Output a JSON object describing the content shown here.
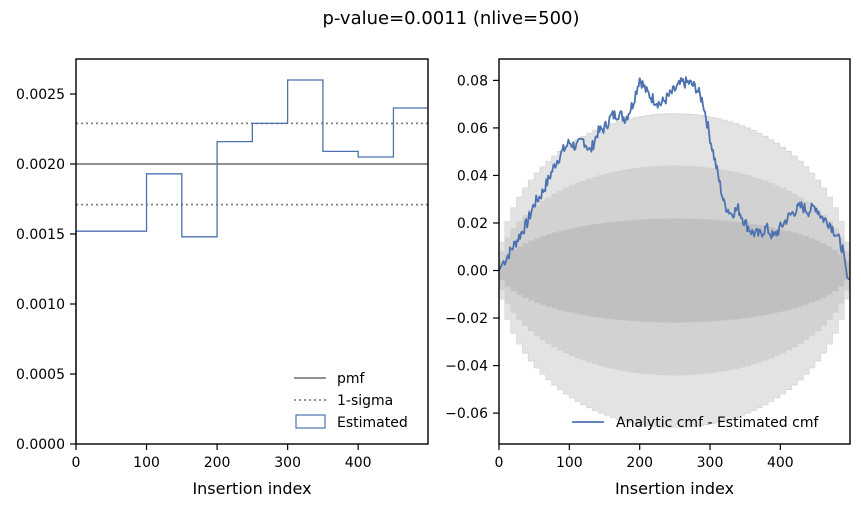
{
  "figure": {
    "title": "p-value=0.0011 (nlive=500)"
  },
  "colors": {
    "estimated": "#4c72b0",
    "pmf": "#808080",
    "band_outer": "#e3e3e3",
    "band_mid": "#d2d2d2",
    "band_inner": "#c0c0c0"
  },
  "chart_data": [
    {
      "type": "line",
      "name": "left",
      "xlabel": "Insertion index",
      "ylabel": "",
      "xlim": [
        0,
        499
      ],
      "ylim": [
        0,
        0.00275
      ],
      "xticks": [
        0,
        100,
        200,
        300,
        400
      ],
      "xtick_labels": [
        "0",
        "100",
        "200",
        "300",
        "400"
      ],
      "yticks": [
        0,
        0.0005,
        0.001,
        0.0015,
        0.002,
        0.0025
      ],
      "ytick_labels": [
        "0.0000",
        "0.0005",
        "0.0010",
        "0.0015",
        "0.0020",
        "0.0025"
      ],
      "pmf": {
        "name": "pmf",
        "value": 0.002
      },
      "sigma": {
        "name": "1-sigma",
        "values": [
          0.00171,
          0.00229
        ]
      },
      "estimated": {
        "name": "Estimated",
        "bin_edges": [
          0,
          100,
          150,
          200,
          250,
          300,
          350,
          400,
          450,
          499
        ],
        "values": [
          0.00152,
          0.00193,
          0.00148,
          0.00216,
          0.00229,
          0.0026,
          0.00209,
          0.00205,
          0.0024
        ]
      },
      "legend": {
        "placement": "lower-right",
        "entries": [
          "pmf",
          "1-sigma",
          "Estimated"
        ]
      }
    },
    {
      "type": "line",
      "name": "right",
      "xlabel": "Insertion index",
      "ylabel": "",
      "xlim": [
        0,
        499
      ],
      "ylim": [
        -0.073,
        0.089
      ],
      "xticks": [
        0,
        100,
        200,
        300,
        400
      ],
      "xtick_labels": [
        "0",
        "100",
        "200",
        "300",
        "400"
      ],
      "yticks": [
        -0.06,
        -0.04,
        -0.02,
        0,
        0.02,
        0.04,
        0.06,
        0.08
      ],
      "ytick_labels": [
        "−0.06",
        "−0.04",
        "−0.02",
        "0.00",
        "0.02",
        "0.04",
        "0.06",
        "0.08"
      ],
      "bands": {
        "description": "sigma bands of analytic minus estimated cmf",
        "amplitudes": [
          0.022,
          0.044,
          0.066
        ]
      },
      "series": [
        {
          "name": "Analytic cmf - Estimated cmf",
          "x": [
            0,
            5,
            10,
            20,
            30,
            40,
            50,
            60,
            70,
            80,
            90,
            100,
            110,
            120,
            130,
            140,
            150,
            160,
            170,
            180,
            190,
            200,
            210,
            220,
            230,
            240,
            250,
            260,
            270,
            280,
            290,
            300,
            310,
            320,
            330,
            340,
            350,
            360,
            370,
            380,
            390,
            400,
            410,
            420,
            430,
            440,
            450,
            460,
            470,
            480,
            490,
            495,
            499
          ],
          "y": [
            0.0,
            0.003,
            0.005,
            0.01,
            0.015,
            0.02,
            0.028,
            0.032,
            0.038,
            0.045,
            0.05,
            0.054,
            0.052,
            0.055,
            0.05,
            0.058,
            0.06,
            0.065,
            0.066,
            0.064,
            0.07,
            0.081,
            0.075,
            0.072,
            0.07,
            0.073,
            0.076,
            0.079,
            0.079,
            0.077,
            0.071,
            0.056,
            0.042,
            0.028,
            0.024,
            0.026,
            0.02,
            0.016,
            0.015,
            0.018,
            0.014,
            0.018,
            0.022,
            0.025,
            0.027,
            0.025,
            0.027,
            0.022,
            0.02,
            0.015,
            0.008,
            -0.003,
            -0.004
          ]
        }
      ],
      "legend": {
        "placement": "lower-right",
        "entries": [
          "Analytic cmf - Estimated cmf"
        ]
      }
    }
  ]
}
